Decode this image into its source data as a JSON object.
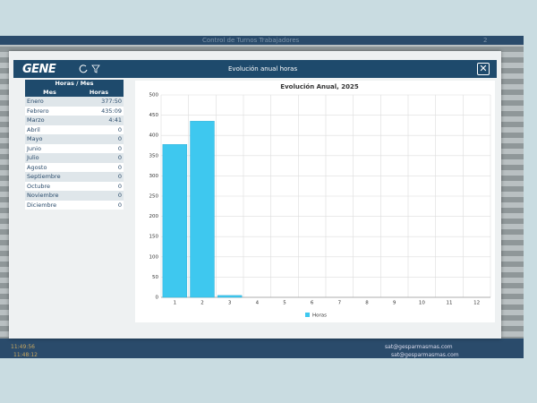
{
  "app": {
    "title": "Control de Turnos Trabajadores",
    "badge": "2",
    "times": [
      "11:49:56",
      "11:48:12"
    ],
    "emails": [
      "sat@gesparmasmas.com",
      "sat@gesparmasmas.com"
    ]
  },
  "modal": {
    "logo": "GENE",
    "title": "Evolución anual horas",
    "close": "✕"
  },
  "table": {
    "title": "Horas / Mes",
    "columns": [
      "Mes",
      "Horas"
    ],
    "rows": [
      [
        "Enero",
        "377:50"
      ],
      [
        "Febrero",
        "435:09"
      ],
      [
        "Marzo",
        "4:41"
      ],
      [
        "Abril",
        "0"
      ],
      [
        "Mayo",
        "0"
      ],
      [
        "Junio",
        "0"
      ],
      [
        "Julio",
        "0"
      ],
      [
        "Agosto",
        "0"
      ],
      [
        "Septiembre",
        "0"
      ],
      [
        "Octubre",
        "0"
      ],
      [
        "Noviembre",
        "0"
      ],
      [
        "Diciembre",
        "0"
      ]
    ]
  },
  "chart_data": {
    "type": "bar",
    "title": "Evolución Anual, 2025",
    "categories": [
      "1",
      "2",
      "3",
      "4",
      "5",
      "6",
      "7",
      "8",
      "9",
      "10",
      "11",
      "12"
    ],
    "series": [
      {
        "name": "Horas",
        "color": "#3ec8ef",
        "values": [
          377.83,
          435.15,
          4.68,
          0,
          0,
          0,
          0,
          0,
          0,
          0,
          0,
          0
        ]
      }
    ],
    "ylim": [
      0,
      500
    ],
    "yticks": [
      0,
      50,
      100,
      150,
      200,
      250,
      300,
      350,
      400,
      450,
      500
    ],
    "grid": true,
    "legend": "bottom"
  }
}
